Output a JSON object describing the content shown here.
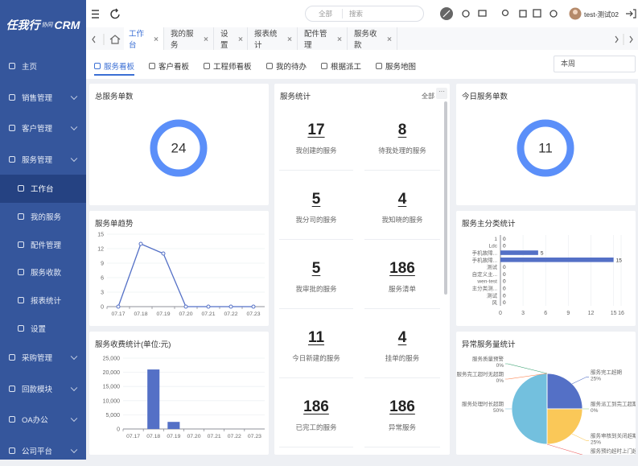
{
  "header": {
    "logo": "任我行",
    "logo_tag": "协同",
    "logo_brand": "CRM",
    "search_scope": "全部",
    "search_placeholder": "搜索",
    "user": "test-测试02"
  },
  "sidebar": [
    {
      "label": "主页"
    },
    {
      "label": "销售管理"
    },
    {
      "label": "客户管理"
    },
    {
      "label": "服务管理",
      "children": [
        "工作台",
        "我的服务",
        "配件管理",
        "服务收款",
        "报表统计",
        "设置"
      ]
    },
    {
      "label": "采购管理"
    },
    {
      "label": "回款模块"
    },
    {
      "label": "OA办公"
    },
    {
      "label": "公司平台"
    }
  ],
  "tabs": [
    "工作台",
    "我的服务",
    "设置",
    "报表统计",
    "配件管理",
    "服务收款"
  ],
  "subnav": [
    "服务看板",
    "客户看板",
    "工程师看板",
    "我的待办",
    "根据派工",
    "服务地图"
  ],
  "period": "本周",
  "widgets": {
    "total": {
      "title": "总服务单数",
      "value": 24
    },
    "today": {
      "title": "今日服务单数",
      "value": 11
    },
    "stats": {
      "title": "服务统计",
      "filter": "全部",
      "items": [
        {
          "value": 17,
          "label": "我创建的服务"
        },
        {
          "value": 8,
          "label": "待我处理的服务"
        },
        {
          "value": 5,
          "label": "我分司的服务"
        },
        {
          "value": 4,
          "label": "我知晓的服务"
        },
        {
          "value": 5,
          "label": "我审批的服务"
        },
        {
          "value": 186,
          "label": "服务清单"
        },
        {
          "value": 11,
          "label": "今日新建的服务"
        },
        {
          "value": 4,
          "label": "挂单的服务"
        },
        {
          "value": 186,
          "label": "已完工的服务"
        },
        {
          "value": 186,
          "label": "异常服务"
        }
      ]
    }
  },
  "chart_data": [
    {
      "type": "line",
      "title": "服务单趋势",
      "categories": [
        "07.17",
        "07.18",
        "07.19",
        "07.20",
        "07.21",
        "07.22",
        "07.23"
      ],
      "values": [
        0,
        13,
        11,
        0,
        0,
        0,
        0
      ],
      "color": "#5470c6",
      "ylim": [
        0,
        15
      ],
      "yticks": [
        0,
        3,
        6,
        9,
        12,
        15
      ]
    },
    {
      "type": "bar",
      "title": "服务收费统计(单位:元)",
      "categories": [
        "07.17",
        "07.18",
        "07.19",
        "07.20",
        "07.21",
        "07.22",
        "07.23"
      ],
      "values": [
        0,
        21000,
        2500,
        0,
        0,
        0,
        0
      ],
      "color": "#5470c6",
      "ylim": [
        0,
        25000
      ],
      "yticks": [
        0,
        {
          "value": 5000,
          "label": "5,000"
        },
        {
          "value": 10000,
          "label": "10,000"
        },
        {
          "value": 15000,
          "label": "15,000"
        },
        {
          "value": 20000,
          "label": "20,000"
        },
        {
          "value": 25000,
          "label": "25,000"
        }
      ]
    },
    {
      "type": "bar",
      "horizontal": true,
      "title": "服务主分类统计",
      "categories": [
        "1",
        "Ldc",
        "手机故障...",
        "手机故障...",
        "测试",
        "自定义主...",
        "wen-test",
        "主分类测...",
        "测试",
        "风"
      ],
      "values": [
        0,
        0,
        5,
        15,
        0,
        0,
        0,
        0,
        0,
        0
      ],
      "color": "#5470c6",
      "xlim": [
        0,
        16
      ],
      "xticks": [
        0,
        3,
        6,
        9,
        12,
        15,
        16
      ]
    },
    {
      "type": "pie",
      "title": "异常服务量统计",
      "labels": [
        "服务完工超期",
        "服务派工到完工超期",
        "服务审核到关闭超期",
        "服务预约超时上门超期",
        "服务处理时长超期",
        "服务质量预警",
        "服务完工超时无超期"
      ],
      "values": [
        25,
        0,
        25,
        0,
        50,
        0,
        0
      ],
      "value_labels": [
        "25%",
        "0%",
        "25%",
        "0%",
        "50%",
        "0%",
        "0%"
      ],
      "colors": [
        "#5470c6",
        "#91cc75",
        "#fac858",
        "#ee6666",
        "#73c0de",
        "#3ba272",
        "#fc8452"
      ]
    }
  ]
}
